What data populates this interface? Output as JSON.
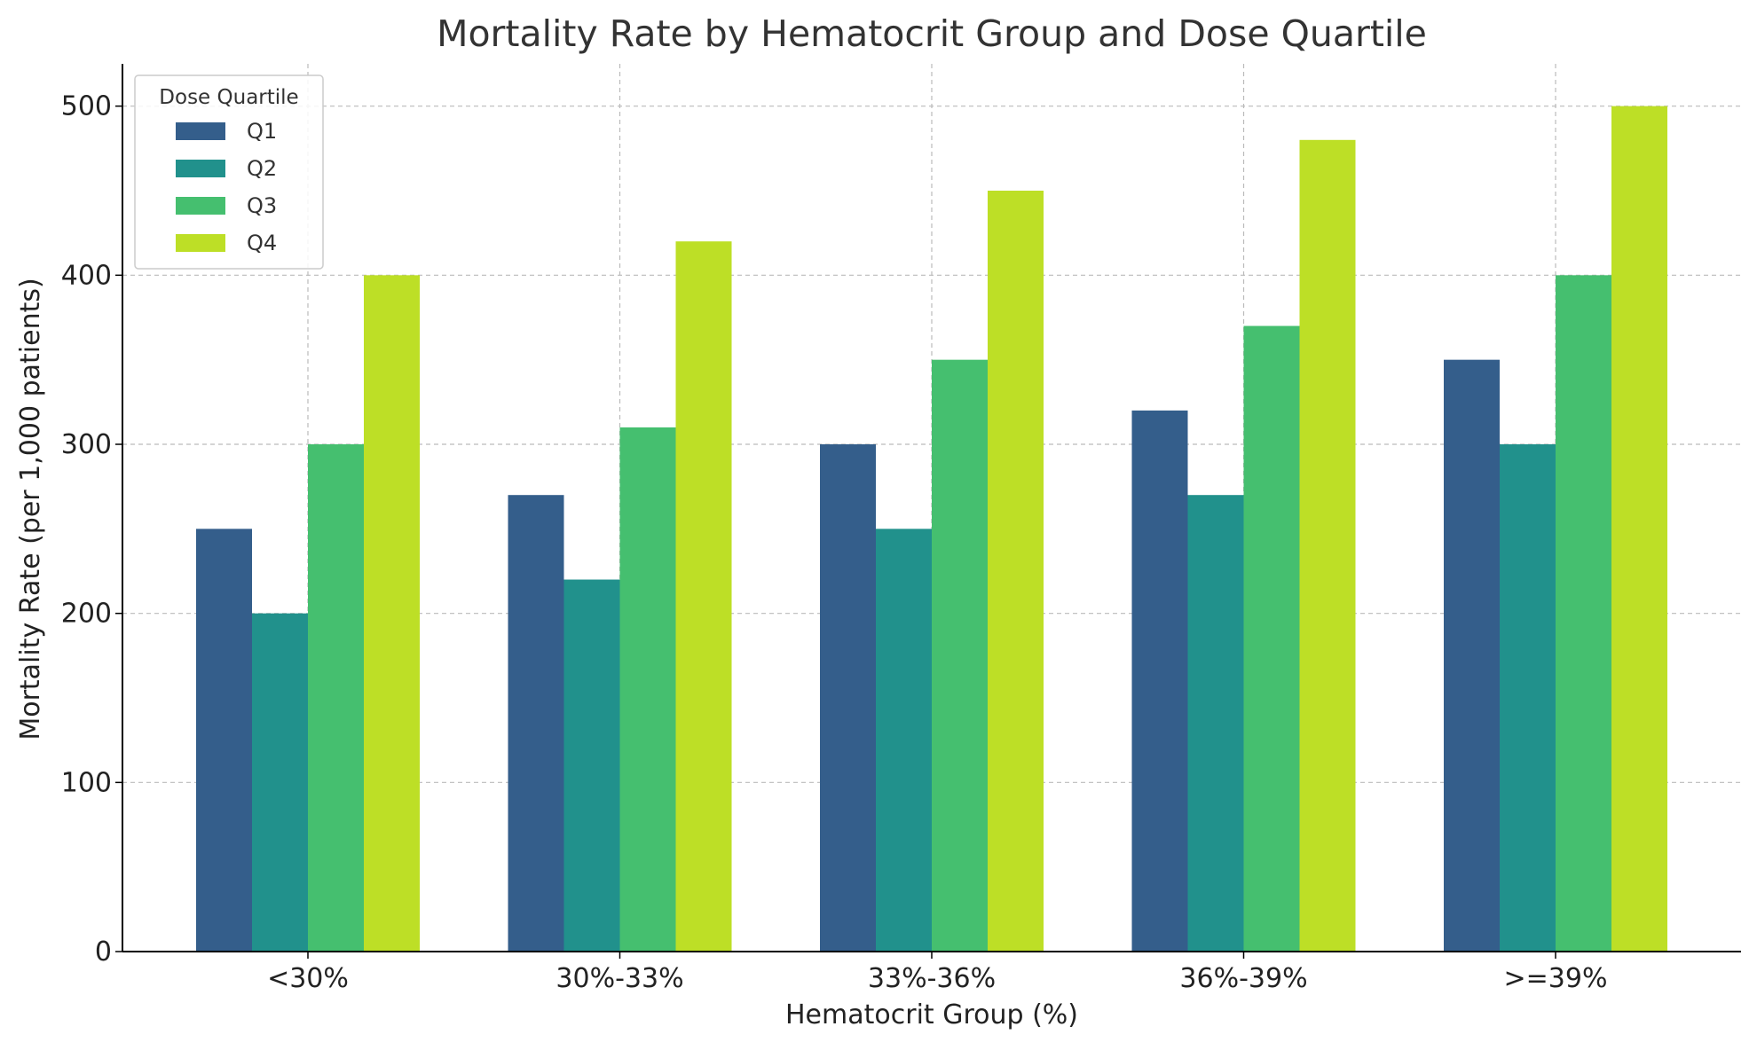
{
  "chart_data": {
    "type": "bar",
    "title": "Mortality Rate by Hematocrit Group and Dose Quartile",
    "xlabel": "Hematocrit Group (%)",
    "ylabel": "Mortality Rate (per 1,000 patients)",
    "categories": [
      "<30%",
      "30%-33%",
      "33%-36%",
      "36%-39%",
      ">=39%"
    ],
    "ylim": [
      0,
      525
    ],
    "yticks": [
      0,
      100,
      200,
      300,
      400,
      500
    ],
    "grid": true,
    "legend": {
      "title": "Dose Quartile",
      "placement": "top-left"
    },
    "series": [
      {
        "name": "Q1",
        "color": "#345e8b",
        "values": [
          250,
          270,
          300,
          320,
          350
        ]
      },
      {
        "name": "Q2",
        "color": "#21918c",
        "values": [
          200,
          220,
          250,
          270,
          300
        ]
      },
      {
        "name": "Q3",
        "color": "#45bf6f",
        "values": [
          300,
          310,
          350,
          370,
          400
        ]
      },
      {
        "name": "Q4",
        "color": "#bddf26",
        "values": [
          400,
          420,
          450,
          480,
          500
        ]
      }
    ]
  }
}
